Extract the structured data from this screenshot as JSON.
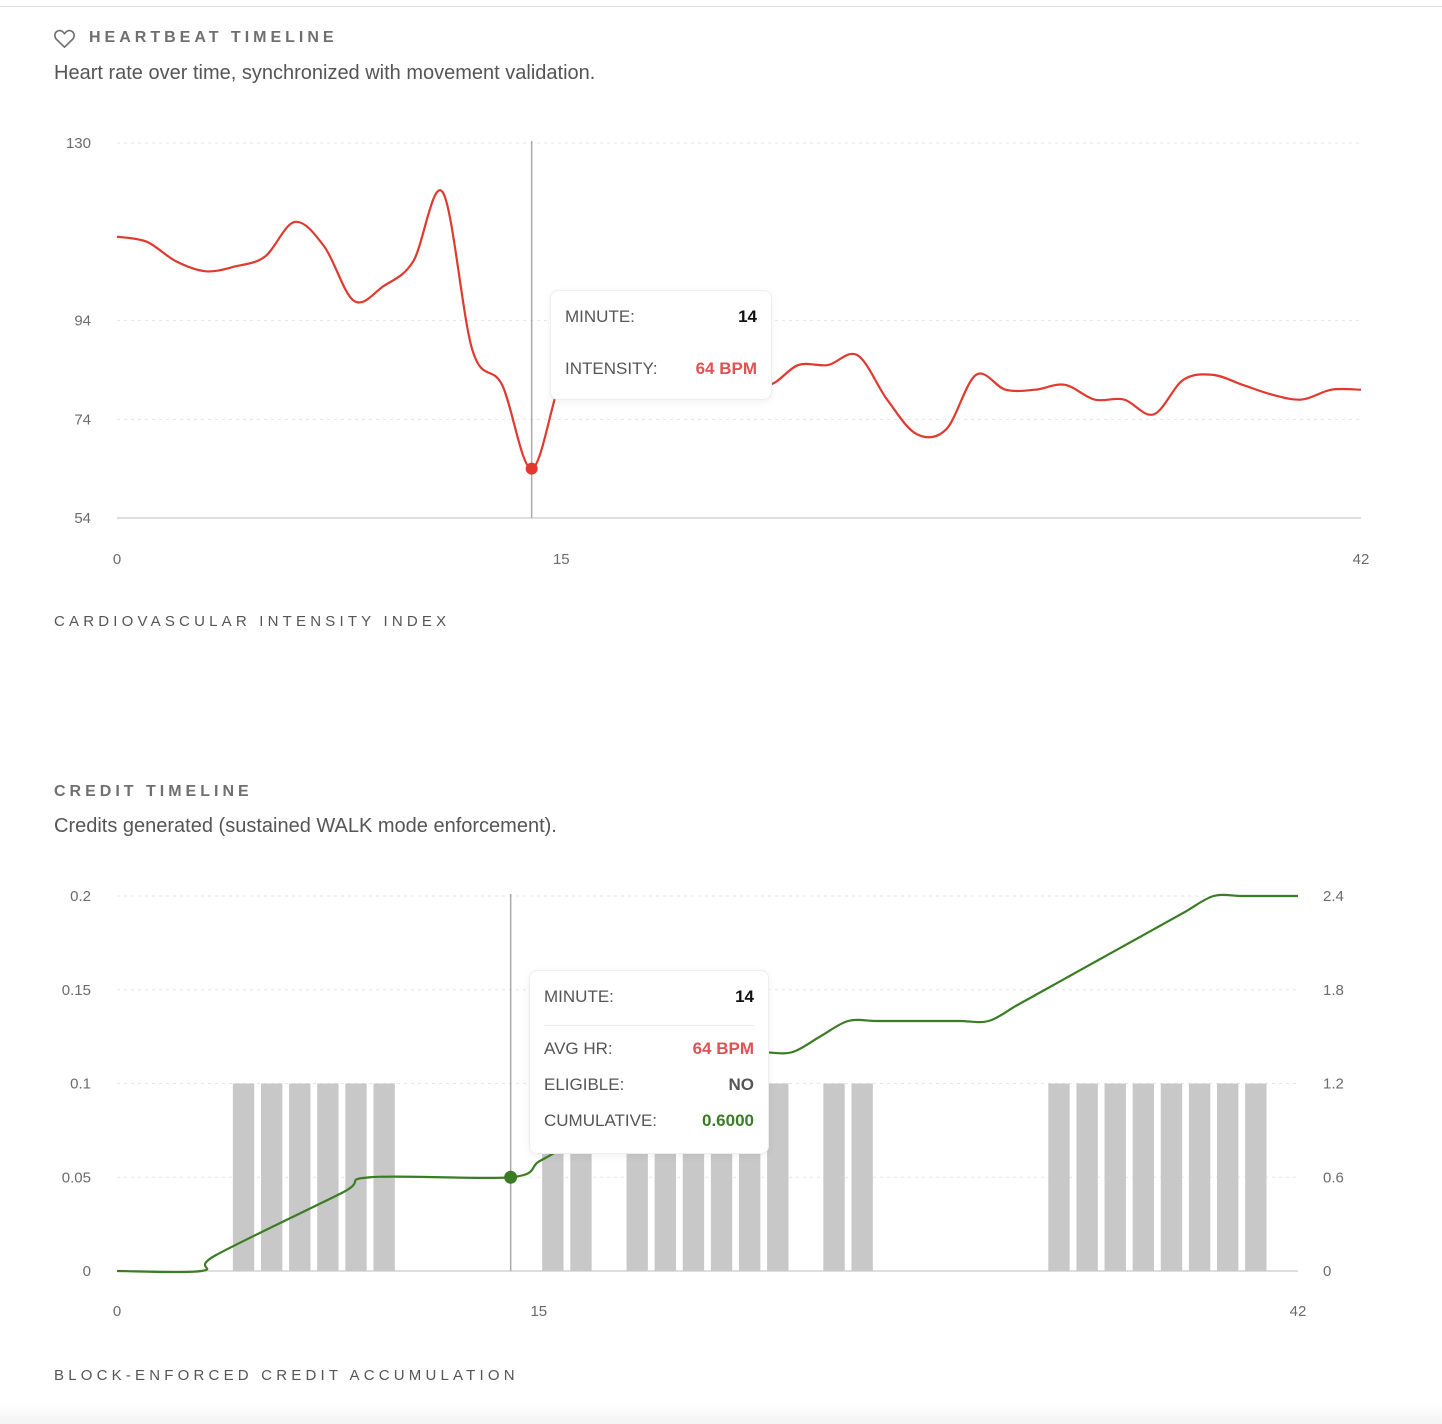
{
  "heartbeat": {
    "title": "HEARTBEAT TIMELINE",
    "subtitle": "Heart rate over time, synchronized with movement validation.",
    "footer": "CARDIOVASCULAR INTENSITY INDEX",
    "icon": "heart-icon",
    "tooltip": {
      "minute_label": "MINUTE:",
      "minute_value": "14",
      "intensity_label": "INTENSITY:",
      "intensity_value": "64 BPM"
    }
  },
  "credit": {
    "title": "CREDIT TIMELINE",
    "subtitle": "Credits generated (sustained WALK mode enforcement).",
    "footer": "BLOCK-ENFORCED CREDIT ACCUMULATION",
    "tooltip": {
      "minute_label": "MINUTE:",
      "minute_value": "14",
      "avg_hr_label": "AVG HR:",
      "avg_hr_value": "64 BPM",
      "eligible_label": "ELIGIBLE:",
      "eligible_value": "NO",
      "cumulative_label": "CUMULATIVE:",
      "cumulative_value": "0.6000"
    }
  },
  "colors": {
    "heart_line": "#e03a2f",
    "credit_line": "#3a7d25",
    "bar": "#c8c8c8",
    "red_value": "#e05252",
    "green_value": "#3a7d25"
  },
  "chart_data": [
    {
      "type": "line",
      "title": "",
      "xlabel": "",
      "ylabel": "",
      "xlim": [
        0,
        42
      ],
      "ylim": [
        54,
        130
      ],
      "x_ticks": [
        "0",
        "15",
        "42"
      ],
      "y_ticks": [
        "54",
        "74",
        "94",
        "130"
      ],
      "grid": "horizontal dashed",
      "highlight_minute": 14,
      "series": [
        {
          "x": [
            0,
            1,
            2,
            3,
            4,
            5,
            6,
            7,
            8,
            9,
            10,
            11,
            12,
            13,
            14,
            15,
            16,
            17,
            18,
            19,
            20,
            21,
            22,
            23,
            24,
            25,
            26,
            27,
            28,
            29,
            30,
            31,
            32,
            33,
            34,
            35,
            36,
            37,
            38,
            39,
            40,
            41,
            42
          ],
          "values": [
            111,
            110,
            106,
            104,
            105,
            107,
            114,
            109,
            98,
            101,
            106,
            120,
            88,
            81,
            64,
            82,
            88,
            88,
            92,
            91,
            93,
            84,
            81,
            85,
            85,
            87,
            78,
            71,
            72,
            83,
            80,
            80,
            81,
            78,
            78,
            75,
            82,
            83,
            81,
            79,
            78,
            80,
            80
          ]
        }
      ]
    },
    {
      "type": "bar",
      "title": "",
      "xlabel": "",
      "ylabel": "",
      "xlim": [
        0,
        42
      ],
      "ylim": [
        0,
        0.2
      ],
      "y2lim": [
        0,
        2.4
      ],
      "x_ticks": [
        "0",
        "15",
        "42"
      ],
      "y_ticks": [
        "0",
        "0.05",
        "0.1",
        "0.15",
        "0.2"
      ],
      "y2_ticks": [
        "0",
        "0.6",
        "1.2",
        "1.8",
        "2.4"
      ],
      "grid": "horizontal dashed",
      "highlight_minute": 14,
      "bars": {
        "x": [
          0,
          1,
          2,
          3,
          4,
          5,
          6,
          7,
          8,
          9,
          10,
          11,
          12,
          13,
          14,
          15,
          16,
          17,
          18,
          19,
          20,
          21,
          22,
          23,
          24,
          25,
          26,
          27,
          28,
          29,
          30,
          31,
          32,
          33,
          34,
          35,
          36,
          37,
          38,
          39,
          40,
          41
        ],
        "values": [
          0,
          0,
          0,
          0,
          0.1,
          0.1,
          0.1,
          0.1,
          0.1,
          0.1,
          0,
          0,
          0,
          0,
          0,
          0.1,
          0.1,
          0,
          0.1,
          0.1,
          0.1,
          0.1,
          0.1,
          0.1,
          0,
          0.1,
          0.1,
          0,
          0,
          0,
          0,
          0,
          0,
          0.1,
          0.1,
          0.1,
          0.1,
          0.1,
          0.1,
          0.1,
          0.1,
          0
        ]
      },
      "cumulative": {
        "x": [
          0,
          3,
          3.5,
          8,
          9,
          14,
          15,
          16,
          17,
          18,
          19,
          20,
          21,
          22,
          23,
          24,
          25,
          26,
          27,
          28,
          29,
          30,
          31,
          32,
          33,
          34,
          35,
          36,
          37,
          38,
          39,
          40,
          41,
          42
        ],
        "values": [
          0,
          0,
          0.1,
          0.5,
          0.6,
          0.6,
          0.7,
          0.8,
          0.9,
          1.0,
          1.1,
          1.2,
          1.3,
          1.4,
          1.4,
          1.4,
          1.5,
          1.6,
          1.6,
          1.6,
          1.6,
          1.6,
          1.6,
          1.7,
          1.8,
          1.9,
          2.0,
          2.1,
          2.2,
          2.3,
          2.4,
          2.4,
          2.4,
          2.4
        ]
      }
    }
  ]
}
